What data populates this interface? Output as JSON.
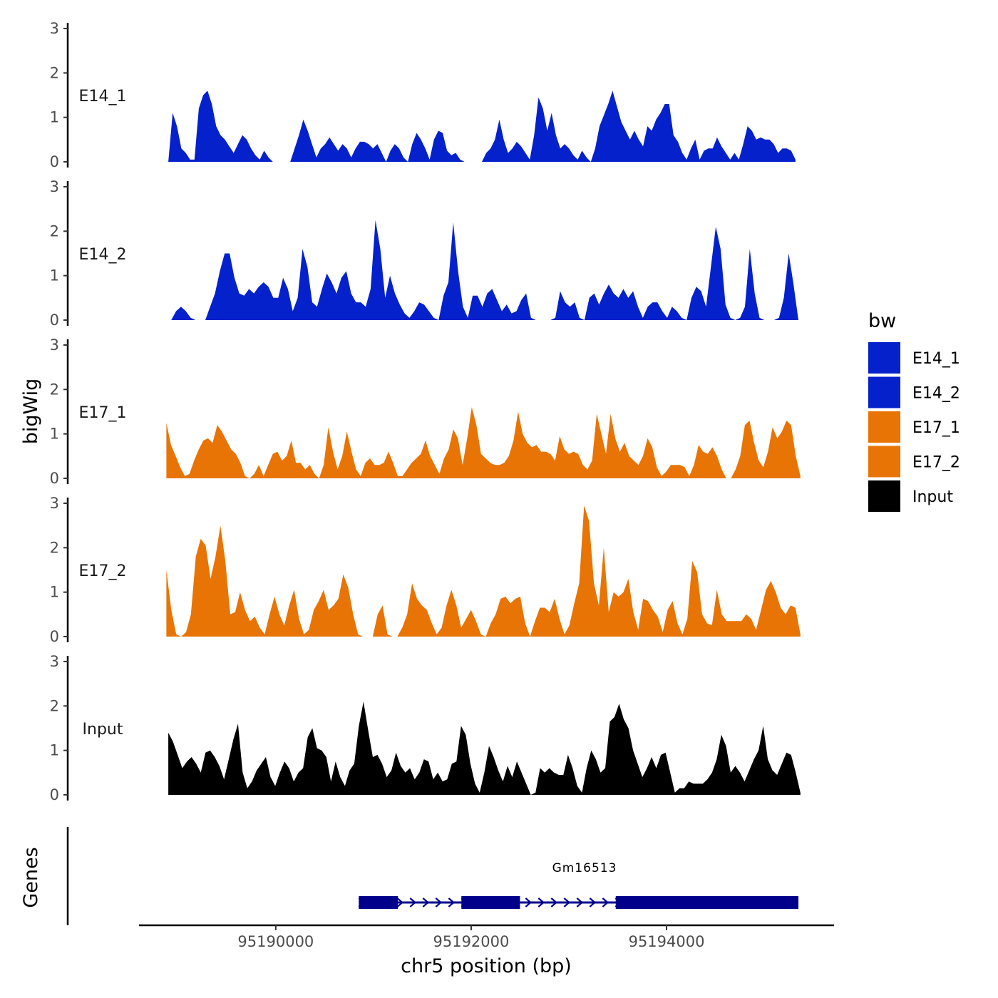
{
  "chart_data": {
    "type": "area",
    "title": "",
    "ylabel": "bigWig",
    "genes_label": "Genes",
    "xlabel": "chr5 position (bp)",
    "xlim": [
      95188600,
      95195700
    ],
    "x_ticks": [
      95190000,
      95192000,
      95194000
    ],
    "x_tick_labels": [
      "95190000",
      "95192000",
      "95194000"
    ],
    "ylim": [
      0,
      3
    ],
    "y_ticks": [
      0,
      1,
      2,
      3
    ],
    "y_tick_labels": [
      "0",
      "1",
      "2",
      "3"
    ],
    "legend": {
      "title": "bw",
      "entries": [
        {
          "name": "E14_1",
          "color": "#0421CC"
        },
        {
          "name": "E14_2",
          "color": "#0421CC"
        },
        {
          "name": "E17_1",
          "color": "#E87405"
        },
        {
          "name": "E17_2",
          "color": "#E87405"
        },
        {
          "name": "Input",
          "color": "#000000"
        }
      ]
    },
    "series": [
      {
        "name": "E14_1",
        "color": "#0421CC",
        "x_start": 95188900,
        "x_end": 95195320,
        "values": [
          0,
          1.1,
          0.8,
          0.3,
          0.2,
          0.05,
          0.05,
          1.2,
          1.5,
          1.6,
          1.3,
          0.8,
          0.6,
          0.5,
          0.35,
          0.2,
          0.4,
          0.6,
          0.5,
          0.3,
          0.15,
          0.05,
          0.25,
          0.1,
          0,
          0,
          0,
          0,
          0,
          0.3,
          0.6,
          0.95,
          0.7,
          0.4,
          0.1,
          0.3,
          0.4,
          0.55,
          0.4,
          0.25,
          0.4,
          0.3,
          0.1,
          0.3,
          0.45,
          0.45,
          0.4,
          0.3,
          0.4,
          0.2,
          0,
          0.25,
          0.4,
          0.3,
          0.1,
          0,
          0.4,
          0.65,
          0.5,
          0.3,
          0.05,
          0.5,
          0.7,
          0.65,
          0.25,
          0.15,
          0.2,
          0.05,
          0,
          0,
          0,
          0,
          0,
          0.2,
          0.3,
          0.5,
          0.95,
          0.5,
          0.2,
          0.3,
          0.45,
          0.35,
          0.2,
          0.05,
          0.6,
          1.45,
          1.2,
          0.7,
          1.1,
          0.6,
          0.3,
          0.4,
          0.3,
          0.15,
          0.05,
          0.25,
          0.1,
          0,
          0.3,
          0.8,
          1.05,
          1.3,
          1.6,
          1.25,
          0.9,
          0.7,
          0.5,
          0.7,
          0.5,
          0.35,
          0.8,
          0.7,
          0.95,
          1.1,
          1.3,
          1.3,
          0.6,
          0.45,
          0.2,
          0.05,
          0.3,
          0.5,
          0.05,
          0.25,
          0.3,
          0.3,
          0.55,
          0.35,
          0.2,
          0.05,
          0.2,
          0.05,
          0.4,
          0.8,
          0.7,
          0.5,
          0.55,
          0.5,
          0.5,
          0.4,
          0.2,
          0.3,
          0.3,
          0.25,
          0.05
        ]
      },
      {
        "name": "E14_2",
        "color": "#0421CC",
        "x_start": 95188930,
        "x_end": 95195350,
        "values": [
          0,
          0.2,
          0.3,
          0.2,
          0.05,
          0,
          0,
          0,
          0.3,
          0.6,
          1.1,
          1.5,
          1.5,
          0.95,
          0.6,
          0.55,
          0.7,
          0.6,
          0.75,
          0.85,
          0.75,
          0.5,
          0.5,
          0.95,
          0.7,
          0.2,
          0.5,
          1.6,
          1.2,
          0.4,
          0.3,
          0.7,
          1.05,
          0.85,
          0.6,
          0.95,
          1.1,
          0.6,
          0.4,
          0.4,
          0.3,
          0.7,
          2.25,
          1.6,
          0.5,
          1.0,
          0.6,
          0.35,
          0.15,
          0.05,
          0.2,
          0.4,
          0.35,
          0.2,
          0.05,
          0,
          0.55,
          0.85,
          2.2,
          1.1,
          0.3,
          0.05,
          0.55,
          0.55,
          0.3,
          0.6,
          0.7,
          0.45,
          0.2,
          0.35,
          0.15,
          0.2,
          0.45,
          0.6,
          0.05,
          0,
          0,
          0,
          0,
          0.05,
          0.65,
          0.4,
          0.3,
          0.4,
          0.05,
          0,
          0.5,
          0.6,
          0.35,
          0.6,
          0.8,
          0.6,
          0.5,
          0.7,
          0.5,
          0.65,
          0.3,
          0.05,
          0.3,
          0.4,
          0.4,
          0.2,
          0.05,
          0.3,
          0.2,
          0.05,
          0,
          0.5,
          0.75,
          0.65,
          0.3,
          1.2,
          2.1,
          1.6,
          0.35,
          0.05,
          0,
          0.05,
          0.3,
          1.6,
          0.6,
          0.05,
          0,
          0,
          0,
          0.05,
          0.5,
          1.5,
          0.8,
          0
        ]
      },
      {
        "name": "E17_1",
        "color": "#E87405",
        "x_start": 95188880,
        "x_end": 95195370,
        "values": [
          1.25,
          0.75,
          0.5,
          0.25,
          0.05,
          0.1,
          0.4,
          0.65,
          0.85,
          0.9,
          0.8,
          1.2,
          1.05,
          0.85,
          0.65,
          0.55,
          0.35,
          0.05,
          0,
          0.1,
          0.3,
          0.05,
          0.3,
          0.55,
          0.6,
          0.4,
          0.5,
          0.85,
          0.35,
          0.35,
          0.2,
          0.3,
          0.1,
          0,
          0.3,
          1.15,
          0.6,
          0.2,
          0.5,
          1.05,
          0.6,
          0.2,
          0.05,
          0.35,
          0.45,
          0.3,
          0.3,
          0.35,
          0.6,
          0.35,
          0.05,
          0.05,
          0.2,
          0.35,
          0.45,
          0.55,
          0.85,
          0.5,
          0.3,
          0.1,
          0.45,
          0.65,
          1.1,
          0.9,
          0.3,
          0.9,
          1.6,
          1.2,
          0.55,
          0.45,
          0.35,
          0.3,
          0.3,
          0.35,
          0.5,
          0.85,
          1.5,
          1.0,
          0.8,
          0.7,
          0.75,
          0.6,
          0.6,
          0.55,
          0.4,
          0.95,
          0.65,
          0.55,
          0.6,
          0.55,
          0.3,
          0.2,
          0.4,
          1.45,
          1.0,
          0.55,
          1.45,
          0.9,
          0.6,
          0.8,
          0.5,
          0.4,
          0.3,
          0.5,
          0.9,
          0.7,
          0.25,
          0.05,
          0.15,
          0.3,
          0.3,
          0.3,
          0.25,
          0.05,
          0.3,
          0.75,
          0.6,
          0.55,
          0.7,
          0.5,
          0.2,
          0,
          0,
          0.2,
          0.5,
          1.2,
          1.3,
          0.8,
          0.4,
          0.25,
          0.6,
          1.15,
          0.9,
          1.05,
          1.3,
          1.2,
          0.5,
          0.05
        ]
      },
      {
        "name": "E17_2",
        "color": "#E87405",
        "x_start": 95188880,
        "x_end": 95195370,
        "values": [
          1.5,
          0.6,
          0.05,
          0,
          0.1,
          0.5,
          1.8,
          2.2,
          2.05,
          1.3,
          1.8,
          2.5,
          1.7,
          0.5,
          0.55,
          1.0,
          0.6,
          0.35,
          0.45,
          0.2,
          0.05,
          0.5,
          0.9,
          0.5,
          0.25,
          0.7,
          1.05,
          0.4,
          0.05,
          0.15,
          0.6,
          0.8,
          1.05,
          0.6,
          0.7,
          0.85,
          1.4,
          1.1,
          0.5,
          0.05,
          0,
          0,
          0,
          0.5,
          0.7,
          0.05,
          0,
          0,
          0.2,
          0.5,
          1.2,
          0.85,
          0.7,
          0.6,
          0.3,
          0.05,
          0.2,
          0.7,
          1.05,
          0.7,
          0.2,
          0.4,
          0.6,
          0.35,
          0.05,
          0,
          0.3,
          0.5,
          0.85,
          0.9,
          0.75,
          0.85,
          0.9,
          0.3,
          0,
          0.35,
          0.65,
          0.65,
          0.55,
          0.85,
          0.4,
          0.05,
          0.25,
          0.75,
          1.2,
          2.95,
          2.6,
          1.2,
          0.7,
          2.0,
          0.55,
          1.0,
          0.9,
          1.0,
          1.3,
          0.55,
          0.15,
          0.85,
          0.8,
          0.6,
          0.45,
          0.1,
          0.6,
          0.8,
          0.3,
          0.05,
          0.4,
          1.7,
          1.45,
          0.5,
          0.3,
          0.25,
          1.05,
          0.5,
          0.35,
          0.35,
          0.35,
          0.35,
          0.5,
          0.4,
          0.15,
          0.6,
          1.05,
          1.25,
          1.0,
          0.65,
          0.5,
          0.7,
          0.65,
          0.05
        ]
      },
      {
        "name": "Input",
        "color": "#000000",
        "x_start": 95188900,
        "x_end": 95195370,
        "values": [
          1.4,
          1.2,
          0.9,
          0.6,
          0.75,
          0.85,
          0.7,
          0.5,
          0.95,
          1.0,
          0.85,
          0.65,
          0.35,
          0.8,
          1.25,
          1.6,
          0.5,
          0.15,
          0.3,
          0.55,
          0.7,
          0.85,
          0.4,
          0.2,
          0.5,
          0.75,
          0.6,
          0.3,
          0.5,
          0.6,
          1.3,
          1.5,
          1.05,
          1.0,
          0.85,
          0.3,
          0.75,
          0.4,
          0.2,
          0.55,
          0.7,
          1.55,
          2.1,
          1.45,
          0.85,
          0.9,
          0.7,
          0.4,
          0.55,
          0.95,
          0.65,
          0.5,
          0.6,
          0.35,
          0.5,
          0.8,
          0.75,
          0.35,
          0.5,
          0.3,
          0.35,
          0.7,
          0.75,
          1.55,
          1.35,
          0.7,
          0.25,
          0.05,
          0.5,
          1.1,
          0.85,
          0.55,
          0.3,
          0.65,
          0.4,
          0.75,
          0.5,
          0.25,
          0,
          0.05,
          0.6,
          0.5,
          0.6,
          0.5,
          0.45,
          0.45,
          0.9,
          0.6,
          0.2,
          0.05,
          0.6,
          1.0,
          0.8,
          0.5,
          0.6,
          1.65,
          1.75,
          2.05,
          1.7,
          1.5,
          1.0,
          0.7,
          0.4,
          0.6,
          0.85,
          0.6,
          0.9,
          0.95,
          0.5,
          0.05,
          0.15,
          0.15,
          0.3,
          0.25,
          0.25,
          0.25,
          0.35,
          0.5,
          0.8,
          1.35,
          1.1,
          0.5,
          0.65,
          0.5,
          0.3,
          0.55,
          0.8,
          1.0,
          1.55,
          0.8,
          0.55,
          0.45,
          0.7,
          0.95,
          0.9,
          0.5,
          0.05
        ]
      }
    ],
    "gene": {
      "name": "Gm16513",
      "strand": "+",
      "start": 95190850,
      "end": 95195350,
      "exons": [
        [
          95190850,
          95191250
        ],
        [
          95191900,
          95192500
        ],
        [
          95193480,
          95195350
        ]
      ],
      "color": "#00008B"
    }
  }
}
